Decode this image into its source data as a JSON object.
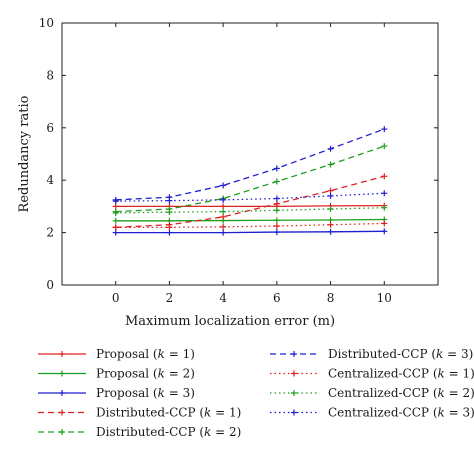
{
  "chart_data": {
    "type": "line",
    "xlabel": "Maximum localization error (m)",
    "ylabel": "Redundancy ratio",
    "xlim": [
      -2,
      12
    ],
    "ylim": [
      0,
      10
    ],
    "x": [
      0,
      2,
      4,
      6,
      8,
      10
    ],
    "xticks": [
      0,
      2,
      4,
      6,
      8,
      10
    ],
    "yticks": [
      0,
      2,
      4,
      6,
      8,
      10
    ],
    "grid": false,
    "legend_position": "below plot, two columns",
    "series": [
      {
        "name": "Proposal",
        "k": "1",
        "color": "#e02020",
        "dash": "solid",
        "values": [
          3.0,
          3.0,
          3.0,
          3.0,
          3.02,
          3.03
        ]
      },
      {
        "name": "Proposal",
        "k": "2",
        "color": "#1e9e1e",
        "dash": "solid",
        "values": [
          2.45,
          2.45,
          2.46,
          2.47,
          2.48,
          2.5
        ]
      },
      {
        "name": "Proposal",
        "k": "3",
        "color": "#1f1fd0",
        "dash": "solid",
        "values": [
          2.0,
          2.0,
          2.0,
          2.02,
          2.03,
          2.05
        ]
      },
      {
        "name": "Distributed-CCP",
        "k": "1",
        "color": "#e02020",
        "dash": "dashed",
        "values": [
          2.2,
          2.3,
          2.6,
          3.1,
          3.6,
          4.15
        ]
      },
      {
        "name": "Distributed-CCP",
        "k": "2",
        "color": "#1e9e1e",
        "dash": "dashed",
        "values": [
          2.8,
          2.9,
          3.3,
          3.95,
          4.6,
          5.3
        ]
      },
      {
        "name": "Distributed-CCP",
        "k": "3",
        "color": "#1f1fd0",
        "dash": "dashed",
        "values": [
          3.25,
          3.35,
          3.8,
          4.45,
          5.2,
          5.95
        ]
      },
      {
        "name": "Centralized-CCP",
        "k": "1",
        "color": "#e02020",
        "dash": "dotted",
        "values": [
          2.2,
          2.2,
          2.22,
          2.25,
          2.3,
          2.35
        ]
      },
      {
        "name": "Centralized-CCP",
        "k": "2",
        "color": "#1e9e1e",
        "dash": "dotted",
        "values": [
          2.75,
          2.78,
          2.8,
          2.85,
          2.9,
          2.95
        ]
      },
      {
        "name": "Centralized-CCP",
        "k": "3",
        "color": "#1f1fd0",
        "dash": "dotted",
        "values": [
          3.2,
          3.22,
          3.25,
          3.3,
          3.4,
          3.5
        ]
      }
    ]
  }
}
